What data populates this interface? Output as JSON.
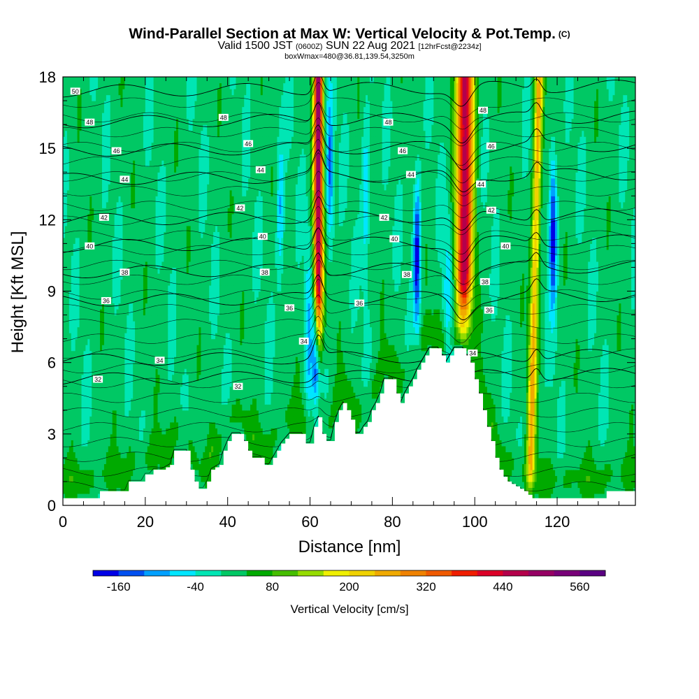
{
  "title": {
    "main": "Wind-Parallel Section at Max W: Vertical Velocity & Pot.Temp.",
    "copyright": "(C)",
    "valid_prefix": "Valid 1500 JST",
    "valid_utc": "(0600Z)",
    "valid_date": "SUN 22 Aug 2021",
    "forecast": "[12hrFcst@2234z]",
    "box": "boxWmax=480@36.81,139.54,3250m"
  },
  "chart_data": {
    "type": "heatmap",
    "xlabel": "Distance [nm]",
    "ylabel": "Height [Kft MSL]",
    "xlim": [
      0,
      139
    ],
    "ylim": [
      0,
      18
    ],
    "x_ticks": [
      0,
      20,
      40,
      60,
      80,
      100,
      120
    ],
    "y_ticks": [
      0,
      3,
      6,
      9,
      12,
      15,
      18
    ],
    "colorbar": {
      "label": "Vertical Velocity [cm/s]",
      "tick_labels": [
        "-160",
        "-40",
        "80",
        "200",
        "320",
        "440",
        "560"
      ],
      "levels": [
        -200,
        -160,
        -120,
        -80,
        -40,
        0,
        40,
        80,
        120,
        160,
        200,
        240,
        280,
        320,
        360,
        400,
        440,
        480,
        520,
        560,
        600
      ],
      "colors": [
        "#0000e6",
        "#0050f0",
        "#00a0ff",
        "#00e6ff",
        "#00e6b4",
        "#00c864",
        "#00aa00",
        "#46be00",
        "#96dc00",
        "#f0f000",
        "#f0d200",
        "#f0aa00",
        "#f08200",
        "#f05a00",
        "#f01e00",
        "#dc0028",
        "#b4004b",
        "#960064",
        "#780078",
        "#5a0082"
      ]
    },
    "updrafts": [
      {
        "x": 62,
        "peak_cm_s": 480
      },
      {
        "x": 97.5,
        "peak_cm_s": 440
      },
      {
        "x": 115,
        "peak_cm_s": 240
      }
    ],
    "downdrafts": [
      {
        "x": 61.3,
        "y_kft": 6.5,
        "min_cm_s": -120
      },
      {
        "x": 64.8,
        "y_kft": 14.0,
        "min_cm_s": -120
      },
      {
        "x": 86.0,
        "y_kft": 10.5,
        "min_cm_s": -160
      },
      {
        "x": 119.0,
        "y_kft": 11.5,
        "min_cm_s": -160
      },
      {
        "x": 52.8,
        "y_kft": 12.5,
        "min_cm_s": -80
      },
      {
        "x": 73.5,
        "y_kft": 13.0,
        "min_cm_s": -80
      }
    ],
    "terrain_kft": [
      [
        0,
        0.3
      ],
      [
        8,
        0.3
      ],
      [
        9,
        0.6
      ],
      [
        15,
        0.6
      ],
      [
        16,
        1.0
      ],
      [
        19,
        1.0
      ],
      [
        20,
        1.3
      ],
      [
        21,
        1.3
      ],
      [
        22,
        1.5
      ],
      [
        24,
        1.5
      ],
      [
        26,
        1.7
      ],
      [
        27,
        2.3
      ],
      [
        30,
        2.3
      ],
      [
        31,
        1.5
      ],
      [
        32,
        1.0
      ],
      [
        33,
        0.7
      ],
      [
        34,
        0.7
      ],
      [
        35,
        1.0
      ],
      [
        36,
        1.5
      ],
      [
        38,
        1.7
      ],
      [
        39,
        2.3
      ],
      [
        40,
        2.7
      ],
      [
        41,
        3.0
      ],
      [
        43,
        3.0
      ],
      [
        44,
        2.7
      ],
      [
        45,
        2.3
      ],
      [
        46,
        2.0
      ],
      [
        48,
        2.0
      ],
      [
        49,
        1.7
      ],
      [
        50,
        1.7
      ],
      [
        51,
        2.0
      ],
      [
        52,
        2.3
      ],
      [
        53,
        2.6
      ],
      [
        55,
        3.0
      ],
      [
        58,
        3.0
      ],
      [
        59,
        2.6
      ],
      [
        60,
        2.6
      ],
      [
        61,
        3.3
      ],
      [
        62,
        3.7
      ],
      [
        63,
        3.0
      ],
      [
        64,
        2.7
      ],
      [
        65,
        2.7
      ],
      [
        66,
        3.5
      ],
      [
        67,
        4.0
      ],
      [
        68,
        4.3
      ],
      [
        69,
        4.0
      ],
      [
        70,
        3.6
      ],
      [
        71,
        3.0
      ],
      [
        72,
        3.0
      ],
      [
        73,
        3.3
      ],
      [
        74,
        3.5
      ],
      [
        75,
        4.0
      ],
      [
        76,
        4.3
      ],
      [
        77,
        4.7
      ],
      [
        78,
        5.3
      ],
      [
        80,
        5.3
      ],
      [
        81,
        4.7
      ],
      [
        82,
        4.3
      ],
      [
        83,
        4.7
      ],
      [
        84,
        5.0
      ],
      [
        85,
        5.3
      ],
      [
        86,
        5.7
      ],
      [
        87,
        6.0
      ],
      [
        88,
        6.3
      ],
      [
        89,
        6.6
      ],
      [
        91,
        6.6
      ],
      [
        92,
        6.3
      ],
      [
        93,
        6.0
      ],
      [
        94,
        6.3
      ],
      [
        95,
        6.6
      ],
      [
        97,
        6.6
      ],
      [
        98,
        6.3
      ],
      [
        99,
        6.0
      ],
      [
        100,
        5.3
      ],
      [
        101,
        4.7
      ],
      [
        102,
        4.0
      ],
      [
        103,
        3.3
      ],
      [
        104,
        2.7
      ],
      [
        105,
        2.0
      ],
      [
        106,
        1.5
      ],
      [
        107,
        1.2
      ],
      [
        108,
        1.0
      ],
      [
        110,
        0.8
      ],
      [
        112,
        0.6
      ],
      [
        114,
        0.3
      ],
      [
        124,
        0.3
      ],
      [
        131,
        0.3
      ],
      [
        132,
        0.6
      ],
      [
        138,
        0.6
      ],
      [
        139,
        0.6
      ]
    ],
    "theta_contours": [
      {
        "label": "32",
        "base_kft": 5.3
      },
      {
        "label": "34",
        "base_kft": 6.1
      },
      {
        "label": "36",
        "base_kft": 8.6
      },
      {
        "label": "38",
        "base_kft": 9.8
      },
      {
        "label": "40",
        "base_kft": 10.9
      },
      {
        "label": "42",
        "base_kft": 12.0
      },
      {
        "label": "44",
        "base_kft": 13.7
      },
      {
        "label": "46",
        "base_kft": 14.9
      },
      {
        "label": "48",
        "base_kft": 16.1
      },
      {
        "label": "50",
        "base_kft": 17.4
      }
    ],
    "contour_label_positions": [
      {
        "label": "50",
        "x": 3,
        "y": 17.4
      },
      {
        "label": "48",
        "x": 6.5,
        "y": 16.1
      },
      {
        "label": "48",
        "x": 39,
        "y": 16.3
      },
      {
        "label": "48",
        "x": 79,
        "y": 16.1
      },
      {
        "label": "48",
        "x": 102,
        "y": 16.6
      },
      {
        "label": "46",
        "x": 13,
        "y": 14.9
      },
      {
        "label": "46",
        "x": 45,
        "y": 15.2
      },
      {
        "label": "46",
        "x": 82.5,
        "y": 14.9
      },
      {
        "label": "46",
        "x": 104,
        "y": 15.1
      },
      {
        "label": "44",
        "x": 15,
        "y": 13.7
      },
      {
        "label": "44",
        "x": 48,
        "y": 14.1
      },
      {
        "label": "44",
        "x": 84.5,
        "y": 13.9
      },
      {
        "label": "44",
        "x": 101.5,
        "y": 13.5
      },
      {
        "label": "42",
        "x": 10,
        "y": 12.1
      },
      {
        "label": "42",
        "x": 43,
        "y": 12.5
      },
      {
        "label": "42",
        "x": 78,
        "y": 12.1
      },
      {
        "label": "42",
        "x": 104,
        "y": 12.4
      },
      {
        "label": "40",
        "x": 6.5,
        "y": 10.9
      },
      {
        "label": "40",
        "x": 48.5,
        "y": 11.3
      },
      {
        "label": "40",
        "x": 80.5,
        "y": 11.2
      },
      {
        "label": "40",
        "x": 107.5,
        "y": 10.9
      },
      {
        "label": "38",
        "x": 15,
        "y": 9.8
      },
      {
        "label": "38",
        "x": 49,
        "y": 9.8
      },
      {
        "label": "38",
        "x": 83.5,
        "y": 9.7
      },
      {
        "label": "38",
        "x": 102.5,
        "y": 9.4
      },
      {
        "label": "36",
        "x": 10.5,
        "y": 8.6
      },
      {
        "label": "36",
        "x": 55,
        "y": 8.3
      },
      {
        "label": "36",
        "x": 72,
        "y": 8.5
      },
      {
        "label": "36",
        "x": 103.5,
        "y": 8.2
      },
      {
        "label": "34",
        "x": 23.5,
        "y": 6.1
      },
      {
        "label": "34",
        "x": 58.5,
        "y": 6.9
      },
      {
        "label": "34",
        "x": 99.5,
        "y": 6.4
      },
      {
        "label": "32",
        "x": 8.5,
        "y": 5.3
      },
      {
        "label": "32",
        "x": 42.5,
        "y": 5.0
      }
    ]
  }
}
